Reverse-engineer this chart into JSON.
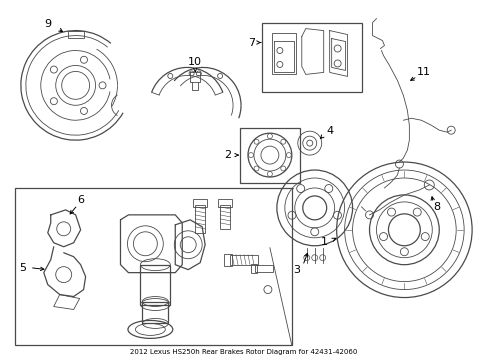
{
  "title": "2012 Lexus HS250h Rear Brakes Rotor Diagram for 42431-42060",
  "bg_color": "#ffffff",
  "line_color": "#4a4a4a",
  "figsize": [
    4.89,
    3.6
  ],
  "dpi": 100
}
